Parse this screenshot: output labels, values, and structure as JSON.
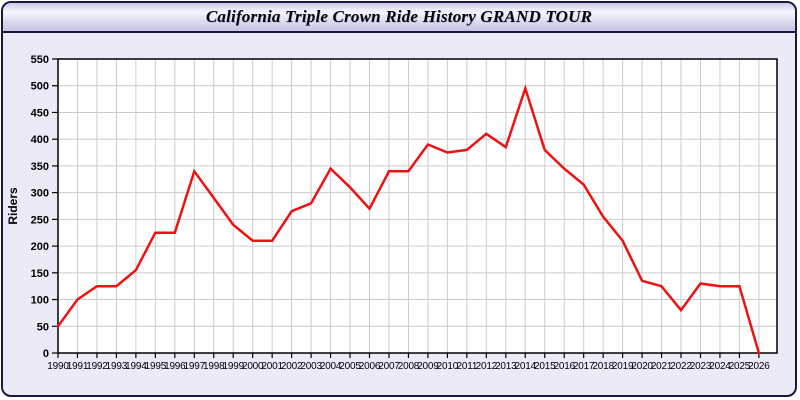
{
  "window": {
    "title": "California Triple Crown Ride History GRAND TOUR"
  },
  "chart_data": {
    "type": "line",
    "title": "California Triple Crown Ride History GRAND TOUR",
    "xlabel": "",
    "ylabel": "Riders",
    "x": [
      1990,
      1991,
      1992,
      1993,
      1994,
      1995,
      1996,
      1997,
      1998,
      1999,
      2000,
      2001,
      2002,
      2003,
      2004,
      2005,
      2006,
      2007,
      2008,
      2009,
      2010,
      2011,
      2012,
      2013,
      2014,
      2015,
      2016,
      2017,
      2018,
      2019,
      2020,
      2021,
      2022,
      2023,
      2024,
      2025,
      2026
    ],
    "values": [
      50,
      100,
      125,
      125,
      155,
      225,
      225,
      340,
      290,
      240,
      210,
      210,
      265,
      280,
      345,
      310,
      270,
      340,
      340,
      390,
      375,
      380,
      410,
      385,
      495,
      380,
      345,
      315,
      255,
      210,
      135,
      125,
      80,
      130,
      125,
      125,
      0
    ],
    "ylim": [
      0,
      550
    ],
    "ytick_step": 50,
    "xlim": [
      1990,
      2026.93
    ],
    "grid": true,
    "legend": "none",
    "colors": {
      "line": "#ee1111",
      "plot_bg": "#ffffff",
      "grid": "#cccccc",
      "plot_border": "#000000",
      "card_bg": "#ebebf8",
      "frame_border": "#181840"
    }
  }
}
